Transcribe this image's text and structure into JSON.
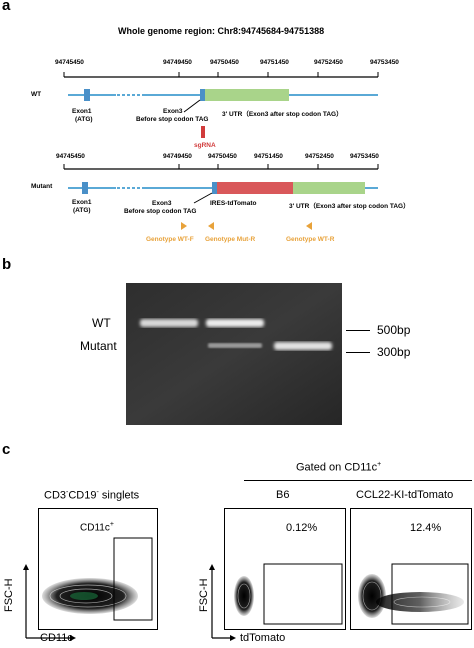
{
  "panel_a": {
    "letter": "a",
    "title": "Whole genome region: Chr8:94745684-94751388",
    "wt": {
      "label": "WT",
      "coords": [
        "94745450",
        "94749450",
        "94750450",
        "94751450",
        "94752450",
        "94753450"
      ],
      "exon1": "Exon1",
      "exon1_sub": "(ATG)",
      "exon3": "Exon3",
      "exon3_sub": "Before stop codon TAG",
      "utr": "3' UTR（Exon3 after stop codon TAG）",
      "sgrna": "sgRNA"
    },
    "mutant": {
      "label": "Mutant",
      "coords": [
        "94745450",
        "94749450",
        "94750450",
        "94751450",
        "94752450",
        "94753450"
      ],
      "exon1": "Exon1",
      "exon1_sub": "(ATG)",
      "exon3": "Exon3",
      "exon3_sub": "Before stop codon TAG",
      "ires": "IRES-tdTomato",
      "utr": "3' UTR（Exon3 after stop codon TAG）",
      "primers": [
        "Genotype WT-F",
        "Genotype Mut-R",
        "Genotype WT-R"
      ]
    },
    "colors": {
      "gene": "#5aa9d6",
      "exon": "#4a90c8",
      "utr": "#a9d48a",
      "ires": "#d9585a",
      "sgrna": "#d13b3b",
      "primer": "#e8a23a"
    }
  },
  "panel_b": {
    "letter": "b",
    "band_labels": [
      "WT",
      "Mutant"
    ],
    "markers": [
      "500bp",
      "300bp"
    ]
  },
  "panel_c": {
    "letter": "c",
    "left_title_parts": [
      "CD3",
      "-",
      "CD19",
      "-",
      " singlets"
    ],
    "gated_title": "Gated on CD11c",
    "gated_sup": "+",
    "gate_label": "CD11c",
    "gate_sup": "+",
    "left_xaxis": "CD11c",
    "yaxis": "FSC-H",
    "right_xaxis": "tdTomato",
    "plots": [
      {
        "title": "B6",
        "percent": "0.12%"
      },
      {
        "title": "CCL22-KI-tdTomato",
        "percent": "12.4%"
      }
    ]
  }
}
